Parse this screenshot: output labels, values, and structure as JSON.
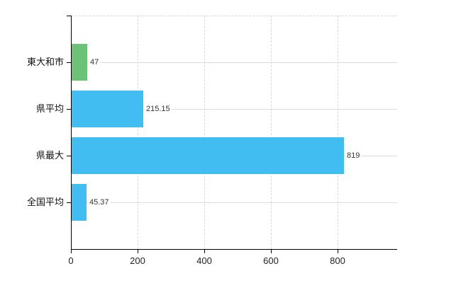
{
  "chart_data": {
    "type": "bar",
    "orientation": "horizontal",
    "title": "",
    "xlabel": "",
    "ylabel": "",
    "categories": [
      "東大和市",
      "県平均",
      "県最大",
      "全国平均"
    ],
    "values": [
      47,
      215.15,
      819,
      45.37
    ],
    "value_labels": [
      "47",
      "215.15",
      "819",
      "45.37"
    ],
    "bar_colors": [
      "#6dc277",
      "#41bdf1",
      "#41bdf1",
      "#41bdf1"
    ],
    "x_ticks": [
      0,
      200,
      400,
      600,
      800
    ],
    "x_tick_labels": [
      "0",
      "200",
      "400",
      "600",
      "800"
    ],
    "xlim": [
      0,
      980
    ],
    "grid": true,
    "legend": "none",
    "colors": {
      "background": "#ffffff",
      "axis": "#000000",
      "gridline": "#dcdcdc",
      "category_text": "#111111",
      "value_text": "#333333",
      "green_bar": "#6dc277",
      "blue_bar": "#41bdf1"
    }
  }
}
